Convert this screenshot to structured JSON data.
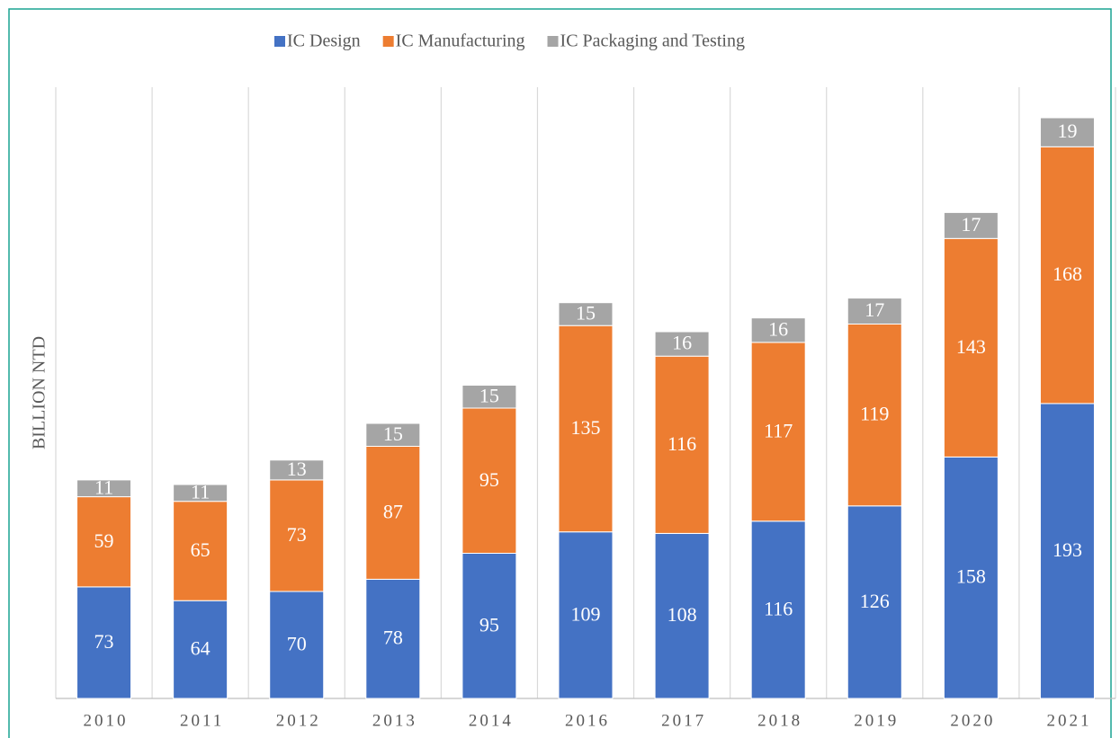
{
  "chart_data": {
    "type": "bar",
    "stacked": true,
    "ylabel": "BILLION NTD",
    "categories": [
      "2010",
      "2011",
      "2012",
      "2013",
      "2014",
      "2016",
      "2017",
      "2018",
      "2019",
      "2020",
      "2021"
    ],
    "series": [
      {
        "name": "IC Design",
        "color": "#4472c4",
        "values": [
          73,
          64,
          70,
          78,
          95,
          109,
          108,
          116,
          126,
          158,
          193
        ]
      },
      {
        "name": "IC Manufacturing",
        "color": "#ed7d31",
        "values": [
          59,
          65,
          73,
          87,
          95,
          135,
          116,
          117,
          119,
          143,
          168
        ]
      },
      {
        "name": "IC Packaging and Testing",
        "color": "#a5a5a5",
        "values": [
          11,
          11,
          13,
          15,
          15,
          15,
          16,
          16,
          17,
          17,
          19
        ]
      }
    ],
    "ylim": [
      0,
      400
    ],
    "legend": "top",
    "grid": "vertical"
  }
}
